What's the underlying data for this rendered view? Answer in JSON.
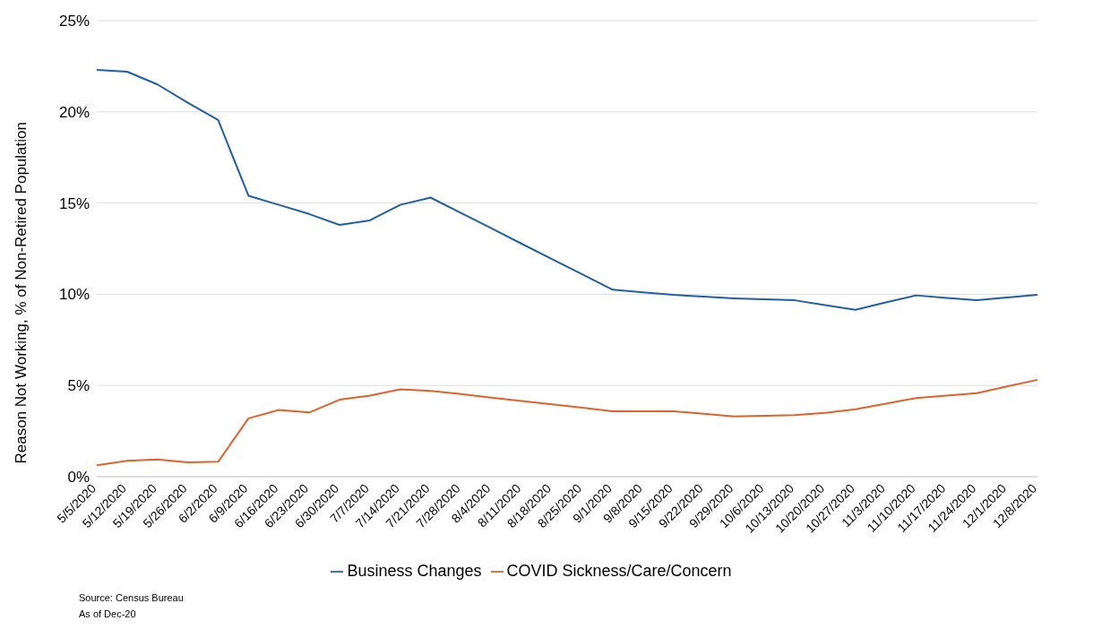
{
  "chart_data": {
    "type": "line",
    "ylabel": "Reason Not Working, % of Non-Retired Population",
    "categories": [
      "5/5/2020",
      "5/12/2020",
      "5/19/2020",
      "5/26/2020",
      "6/2/2020",
      "6/9/2020",
      "6/16/2020",
      "6/23/2020",
      "6/30/2020",
      "7/7/2020",
      "7/14/2020",
      "7/21/2020",
      "7/28/2020",
      "8/4/2020",
      "8/11/2020",
      "8/18/2020",
      "8/25/2020",
      "9/1/2020",
      "9/8/2020",
      "9/15/2020",
      "9/22/2020",
      "9/29/2020",
      "10/6/2020",
      "10/13/2020",
      "10/20/2020",
      "10/27/2020",
      "11/3/2020",
      "11/10/2020",
      "11/17/2020",
      "11/24/2020",
      "12/1/2020",
      "12/8/2020"
    ],
    "series": [
      {
        "name": "COVID Sickness/Care/Concern",
        "color": "#e0622a",
        "values": [
          0.63,
          0.87,
          0.94,
          0.79,
          0.82,
          3.2,
          3.66,
          3.52,
          4.22,
          4.44,
          4.79,
          4.7,
          4.53,
          4.34,
          4.15,
          3.97,
          3.78,
          3.59,
          3.59,
          3.59,
          3.45,
          3.3,
          3.34,
          3.38,
          3.5,
          3.7,
          4.0,
          4.31,
          4.45,
          4.58,
          4.95,
          5.31
        ]
      },
      {
        "name": "Business Changes",
        "color": "#1f5fa8",
        "values": [
          22.3,
          22.2,
          21.5,
          20.5,
          19.55,
          15.4,
          14.9,
          14.4,
          13.8,
          14.05,
          14.9,
          15.3,
          14.46,
          13.62,
          12.77,
          11.93,
          11.09,
          10.25,
          10.11,
          9.97,
          9.87,
          9.78,
          9.72,
          9.67,
          9.41,
          9.15,
          9.55,
          9.94,
          9.8,
          9.67,
          9.82,
          9.97
        ]
      }
    ],
    "ylim": [
      0,
      25
    ],
    "yticks": [
      {
        "value": 0,
        "label": "0%"
      },
      {
        "value": 5,
        "label": "5%"
      },
      {
        "value": 10,
        "label": "10%"
      },
      {
        "value": 15,
        "label": "15%"
      },
      {
        "value": 20,
        "label": "20%"
      },
      {
        "value": 25,
        "label": "25%"
      }
    ],
    "grid": "y",
    "legend": "bottom",
    "marker": "none",
    "line_style": "solid",
    "annotations": [
      "Source: Census Bureau",
      "As of Dec-20"
    ]
  }
}
